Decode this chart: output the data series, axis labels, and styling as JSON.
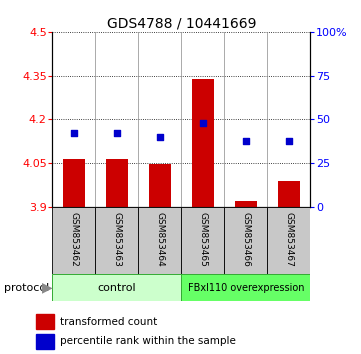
{
  "title": "GDS4788 / 10441669",
  "samples": [
    "GSM853462",
    "GSM853463",
    "GSM853464",
    "GSM853465",
    "GSM853466",
    "GSM853467"
  ],
  "red_bars": [
    4.065,
    4.065,
    4.048,
    4.34,
    3.921,
    3.99
  ],
  "blue_squares_pct": [
    42,
    42,
    40,
    48,
    38,
    38
  ],
  "ylim_left": [
    3.9,
    4.5
  ],
  "ylim_right": [
    0,
    100
  ],
  "yticks_left": [
    3.9,
    4.05,
    4.2,
    4.35,
    4.5
  ],
  "yticks_right": [
    0,
    25,
    50,
    75,
    100
  ],
  "ytick_labels_left": [
    "3.9",
    "4.05",
    "4.2",
    "4.35",
    "4.5"
  ],
  "ytick_labels_right": [
    "0",
    "25",
    "50",
    "75",
    "100%"
  ],
  "bar_bottom": 3.9,
  "bar_color": "#cc0000",
  "square_color": "#0000cc",
  "group_control_label": "control",
  "group_overexpression_label": "FBxl110 overexpression",
  "protocol_label": "protocol",
  "legend_red": "transformed count",
  "legend_blue": "percentile rank within the sample",
  "bg_color_control": "#ccffcc",
  "bg_color_overexpression": "#66ff66",
  "sample_box_color": "#c8c8c8",
  "title_fontsize": 10,
  "tick_fontsize": 8,
  "label_fontsize": 7,
  "bar_width": 0.5
}
